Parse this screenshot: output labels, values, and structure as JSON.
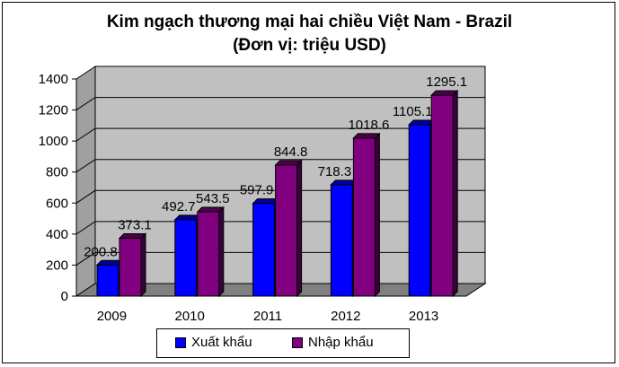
{
  "chart_data": {
    "type": "bar",
    "title": "Kim ngạch thương mại hai chiều Việt Nam - Brazil",
    "subtitle": "(Đơn vị: triệu USD)",
    "categories": [
      "2009",
      "2010",
      "2011",
      "2012",
      "2013"
    ],
    "series": [
      {
        "name": "Xuất khẩu",
        "values": [
          200.8,
          492.7,
          597.9,
          718.3,
          1105.1
        ],
        "labels": [
          "200.8",
          "492.7",
          "597.9",
          "718.3",
          "1105.1"
        ],
        "color": "#0000FF"
      },
      {
        "name": "Nhập khẩu",
        "values": [
          373.1,
          543.5,
          844.8,
          1018.6,
          1295.1
        ],
        "labels": [
          "373.1",
          "543.5",
          "844.8",
          "1018.6",
          "1295.1"
        ],
        "color": "#800080"
      }
    ],
    "ylim": [
      0,
      1400
    ],
    "yticks": [
      "0",
      "200",
      "400",
      "600",
      "800",
      "1000",
      "1200",
      "1400"
    ],
    "grid": true,
    "legend": "bottom",
    "three_d": true
  }
}
